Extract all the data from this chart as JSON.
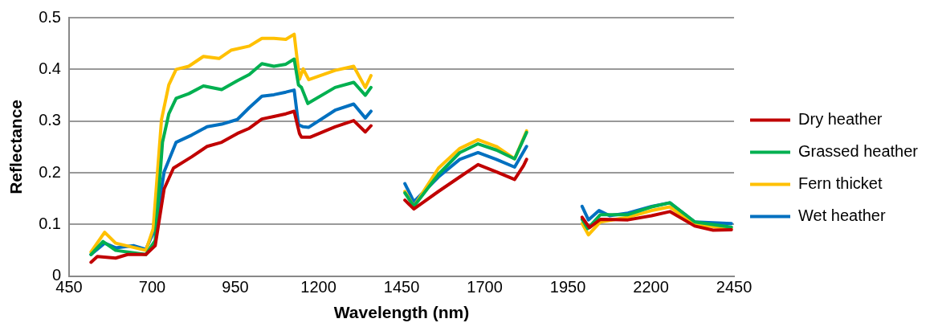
{
  "chart_data": {
    "type": "line",
    "xlabel": "Wavelength (nm)",
    "ylabel": "Reflectance",
    "xlim": [
      450,
      2450
    ],
    "xticks": [
      450,
      700,
      950,
      1200,
      1450,
      1700,
      1950,
      2200,
      2450
    ],
    "ylim": [
      0,
      0.5
    ],
    "yticks": [
      0,
      0.1,
      0.2,
      0.3,
      0.4,
      0.5
    ],
    "grid": "y",
    "legend": "right",
    "marker": "none",
    "line_style": "solid",
    "series": [
      {
        "name": "Dry heather",
        "color": "#c00000",
        "x": [
          516,
          535,
          590,
          626,
          681,
          709,
          736,
          764,
          819,
          865,
          909,
          956,
          992,
          1030,
          1066,
          1102,
          1127,
          1143,
          1149,
          1176,
          1250,
          1306,
          1341,
          1358,
          1400,
          1460,
          1487,
          1561,
          1625,
          1680,
          1735,
          1790,
          1817,
          1826,
          1900,
          1993,
          2015,
          2048,
          2131,
          2202,
          2257,
          2332,
          2387,
          2442
        ],
        "values": [
          0.027,
          0.038,
          0.035,
          0.042,
          0.042,
          0.059,
          0.169,
          0.209,
          0.231,
          0.251,
          0.259,
          0.276,
          0.286,
          0.304,
          0.309,
          0.314,
          0.319,
          0.276,
          0.269,
          0.269,
          0.289,
          0.301,
          0.279,
          0.291,
          null,
          0.147,
          0.13,
          0.164,
          0.192,
          0.216,
          0.202,
          0.187,
          0.214,
          0.226,
          null,
          0.114,
          0.094,
          0.11,
          0.109,
          0.117,
          0.125,
          0.097,
          0.089,
          0.09
        ]
      },
      {
        "name": "Grassed heather",
        "color": "#00b050",
        "x": [
          516,
          552,
          590,
          681,
          709,
          731,
          750,
          772,
          810,
          854,
          909,
          956,
          992,
          1030,
          1066,
          1102,
          1127,
          1140,
          1149,
          1168,
          1250,
          1306,
          1341,
          1358,
          1400,
          1460,
          1487,
          1561,
          1625,
          1680,
          1735,
          1790,
          1826,
          1900,
          1993,
          2010,
          2048,
          2131,
          2202,
          2257,
          2332,
          2442
        ],
        "values": [
          0.042,
          0.067,
          0.05,
          0.042,
          0.069,
          0.259,
          0.314,
          0.344,
          0.353,
          0.368,
          0.361,
          0.378,
          0.39,
          0.411,
          0.406,
          0.41,
          0.42,
          0.37,
          0.365,
          0.334,
          0.365,
          0.375,
          0.35,
          0.365,
          null,
          0.161,
          0.135,
          0.197,
          0.239,
          0.256,
          0.244,
          0.227,
          0.278,
          null,
          0.11,
          0.092,
          0.119,
          0.119,
          0.134,
          0.142,
          0.105,
          0.095
        ]
      },
      {
        "name": "Fern thicket",
        "color": "#ffc000",
        "x": [
          516,
          557,
          590,
          681,
          703,
          728,
          750,
          772,
          810,
          854,
          901,
          937,
          992,
          1030,
          1066,
          1102,
          1127,
          1143,
          1154,
          1171,
          1250,
          1306,
          1341,
          1358,
          1400,
          1460,
          1487,
          1561,
          1625,
          1680,
          1735,
          1790,
          1826,
          1900,
          1993,
          2012,
          2048,
          2131,
          2202,
          2257,
          2332,
          2442
        ],
        "values": [
          0.047,
          0.085,
          0.064,
          0.05,
          0.092,
          0.303,
          0.37,
          0.4,
          0.406,
          0.425,
          0.421,
          0.437,
          0.445,
          0.46,
          0.46,
          0.458,
          0.468,
          0.381,
          0.401,
          0.38,
          0.398,
          0.406,
          0.365,
          0.388,
          null,
          0.164,
          0.135,
          0.209,
          0.247,
          0.264,
          0.251,
          0.227,
          0.281,
          null,
          0.102,
          0.08,
          0.105,
          0.114,
          0.127,
          0.134,
          0.1,
          0.092
        ]
      },
      {
        "name": "Wet heather",
        "color": "#0070c0",
        "x": [
          516,
          557,
          590,
          645,
          681,
          709,
          736,
          772,
          819,
          865,
          909,
          956,
          992,
          1030,
          1066,
          1102,
          1127,
          1140,
          1154,
          1171,
          1250,
          1306,
          1341,
          1358,
          1400,
          1460,
          1487,
          1561,
          1625,
          1680,
          1735,
          1790,
          1826,
          1900,
          1993,
          2012,
          2044,
          2076,
          2131,
          2202,
          2257,
          2332,
          2442
        ],
        "values": [
          0.042,
          0.064,
          0.055,
          0.059,
          0.052,
          0.092,
          0.202,
          0.259,
          0.273,
          0.289,
          0.294,
          0.303,
          0.326,
          0.348,
          0.351,
          0.356,
          0.36,
          0.293,
          0.289,
          0.288,
          0.321,
          0.333,
          0.306,
          0.319,
          null,
          0.179,
          0.144,
          0.192,
          0.226,
          0.239,
          0.226,
          0.211,
          0.251,
          null,
          0.135,
          0.109,
          0.127,
          0.117,
          0.122,
          0.135,
          0.142,
          0.105,
          0.102
        ]
      }
    ]
  }
}
